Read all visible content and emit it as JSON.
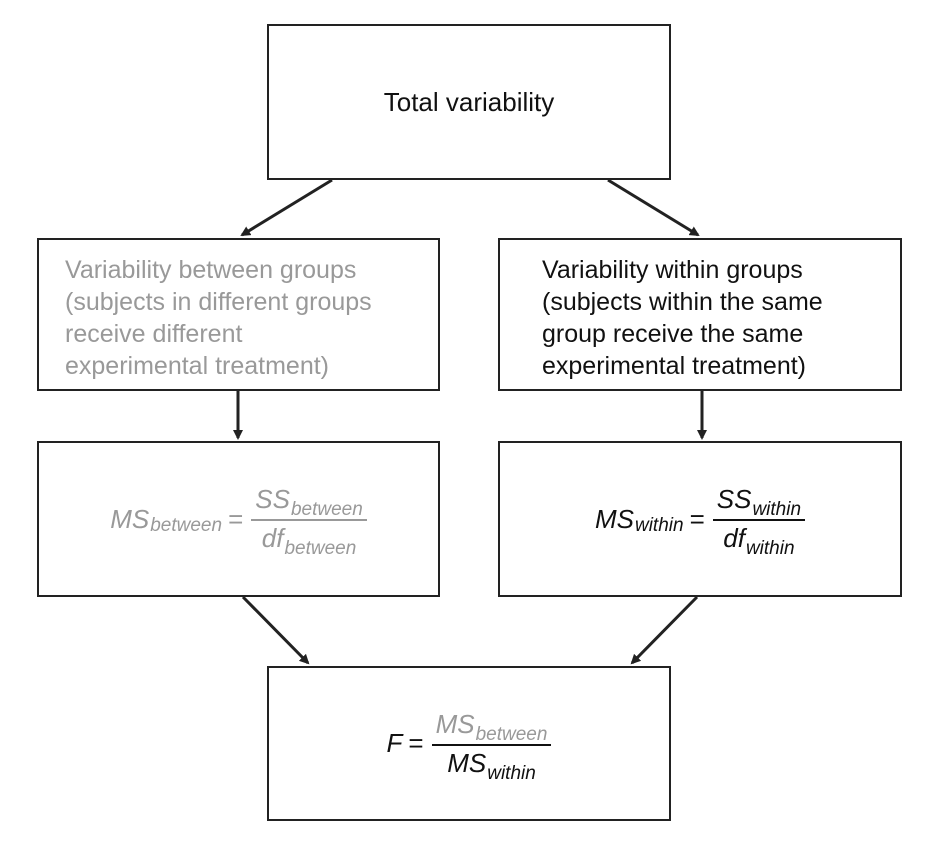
{
  "colors": {
    "accent_gray": "#999999",
    "text_black": "#111111",
    "border": "#222222"
  },
  "total": {
    "label": "Total variability"
  },
  "between": {
    "lines": [
      "Variability between groups",
      "(subjects in different groups",
      "receive different",
      "experimental treatment)"
    ]
  },
  "within": {
    "lines": [
      "Variability within groups",
      "(subjects within the same",
      "group receive the same",
      "experimental treatment)"
    ]
  },
  "ms_between": {
    "lhs": "MS",
    "lhs_sub": "between",
    "equals": "=",
    "num": "SS",
    "num_sub": "between",
    "den": "df",
    "den_sub": "between"
  },
  "ms_within": {
    "lhs": "MS",
    "lhs_sub": "within",
    "equals": "=",
    "num": "SS",
    "num_sub": "within",
    "den": "df",
    "den_sub": "within"
  },
  "f_ratio": {
    "lhs": "F",
    "equals": "=",
    "num": "MS",
    "num_sub": "between",
    "den": "MS",
    "den_sub": "within"
  }
}
